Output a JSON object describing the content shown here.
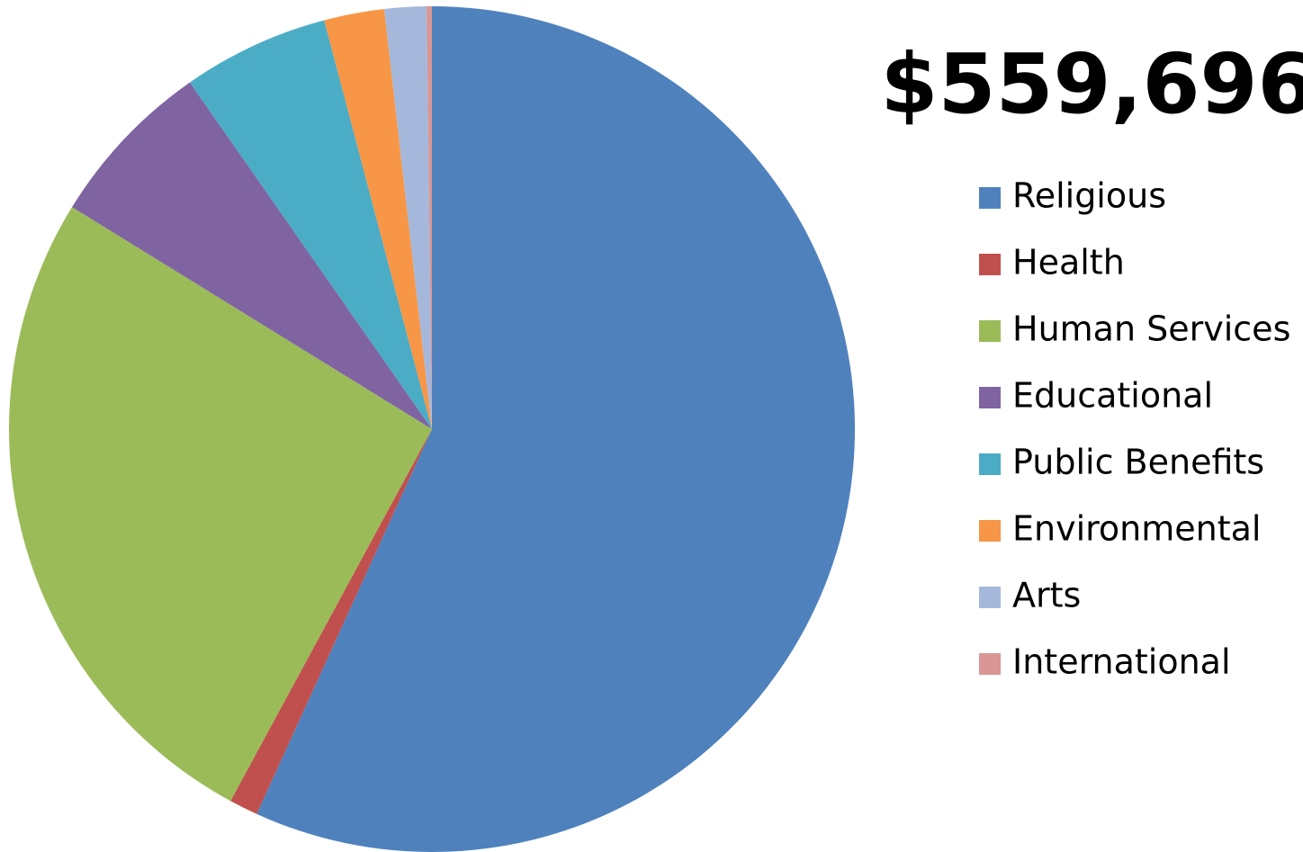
{
  "chart_data": {
    "type": "pie",
    "title": "$559,696",
    "categories": [
      "Religious",
      "Health",
      "Human Services",
      "Educational",
      "Public Benefits",
      "Environmental",
      "Arts",
      "International"
    ],
    "values": [
      56.8,
      1.1,
      25.9,
      6.5,
      5.6,
      2.3,
      1.6,
      0.2
    ],
    "colors": [
      "#4f81bd",
      "#c0504d",
      "#9bbb59",
      "#8064a2",
      "#4bacc6",
      "#f79646",
      "#a5b8dc",
      "#d99694"
    ],
    "legend": "right"
  }
}
